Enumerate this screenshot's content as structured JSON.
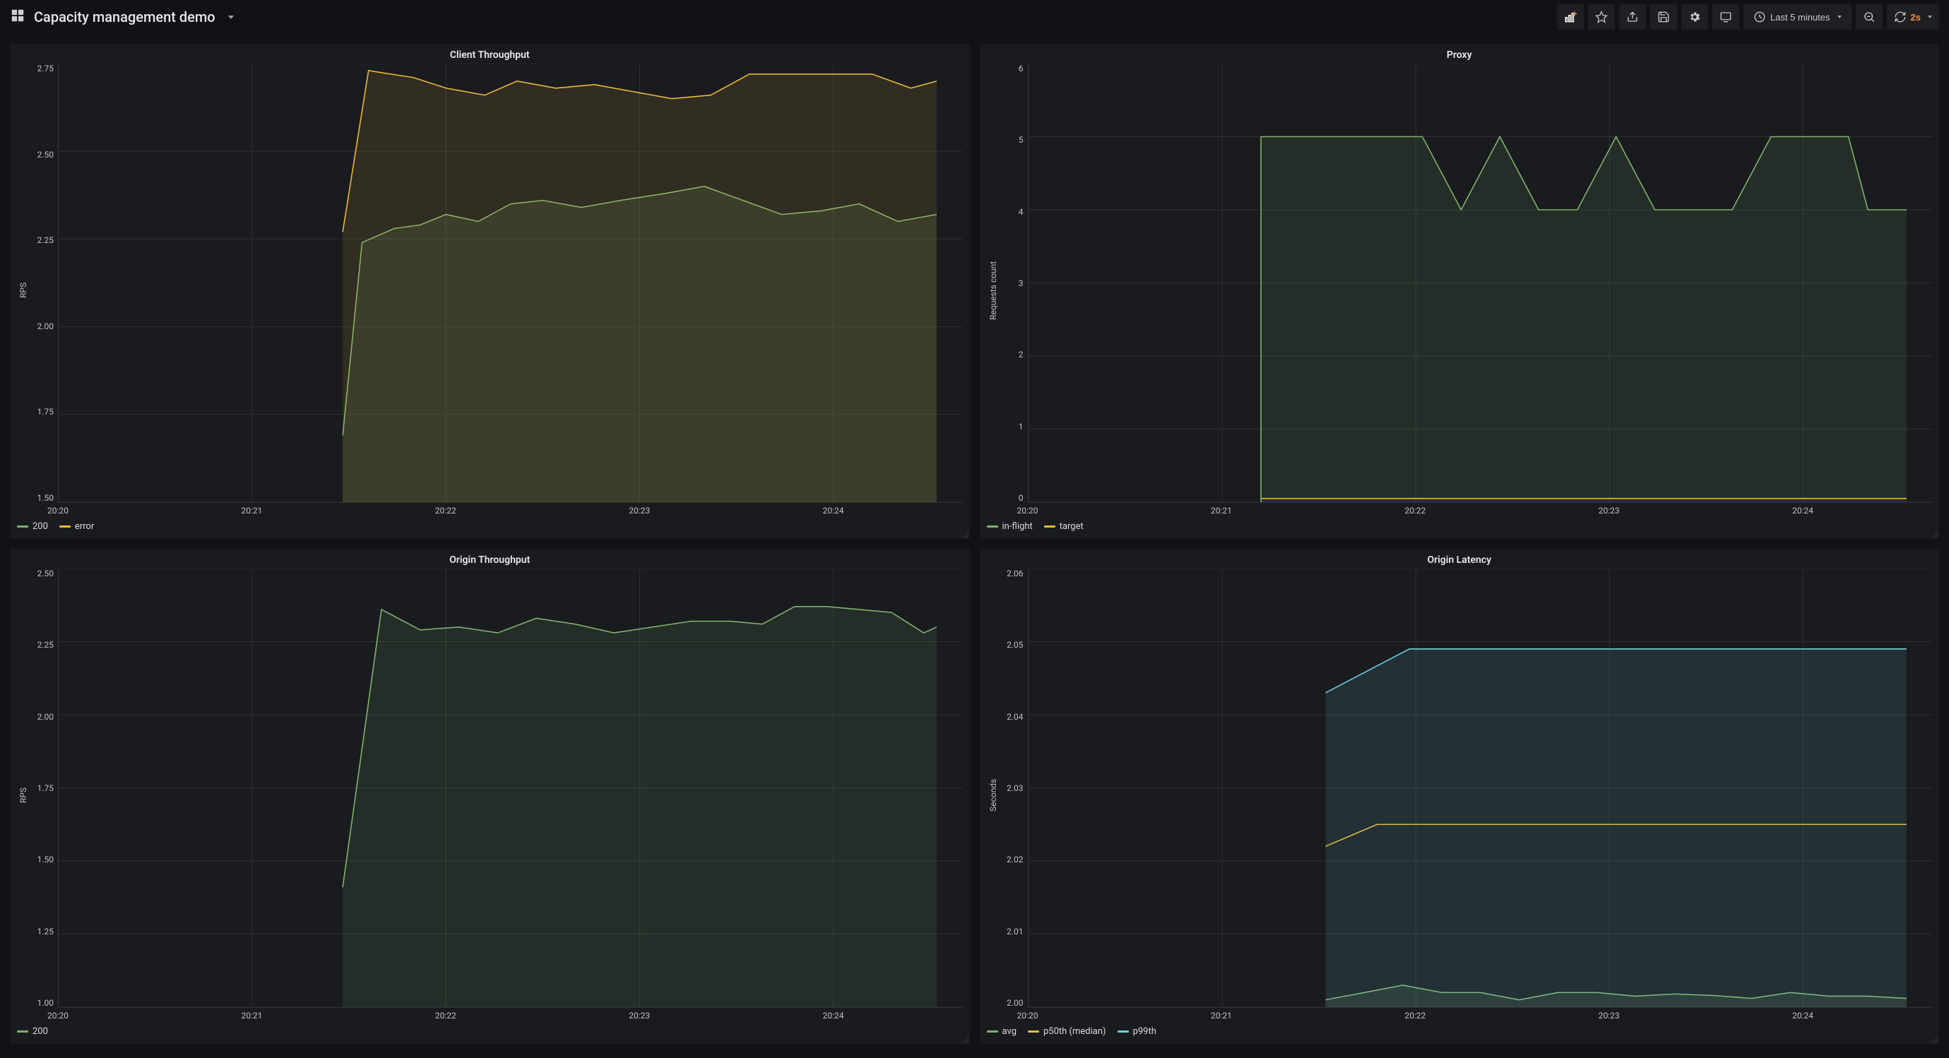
{
  "header": {
    "title": "Capacity management demo",
    "time_range_label": "Last 5 minutes",
    "refresh_interval": "2s"
  },
  "colors": {
    "background": "#111217",
    "panel_bg": "#1a1b1f",
    "grid": "#2f3034",
    "text": "#d8d9da",
    "accent_orange": "#ff8f33"
  },
  "x_axis": {
    "min": 0,
    "max": 280,
    "ticks": [
      {
        "label": "20:20",
        "v": 0
      },
      {
        "label": "20:21",
        "v": 60
      },
      {
        "label": "20:22",
        "v": 120
      },
      {
        "label": "20:23",
        "v": 180
      },
      {
        "label": "20:24",
        "v": 240
      }
    ]
  },
  "panels": [
    {
      "id": "client-throughput",
      "title": "Client Throughput",
      "y_label": "RPS",
      "y_min": 1.5,
      "y_max": 2.75,
      "y_ticks": [
        "2.75",
        "2.50",
        "2.25",
        "2.00",
        "1.75",
        "1.50"
      ],
      "series": [
        {
          "name": "200",
          "color": "#7eb26d",
          "fill": true,
          "fill_opacity": 0.12,
          "points": [
            [
              88,
              1.69
            ],
            [
              94,
              2.24
            ],
            [
              104,
              2.28
            ],
            [
              112,
              2.29
            ],
            [
              120,
              2.32
            ],
            [
              130,
              2.3
            ],
            [
              140,
              2.35
            ],
            [
              150,
              2.36
            ],
            [
              162,
              2.34
            ],
            [
              174,
              2.36
            ],
            [
              188,
              2.38
            ],
            [
              200,
              2.4
            ],
            [
              212,
              2.36
            ],
            [
              224,
              2.32
            ],
            [
              236,
              2.33
            ],
            [
              248,
              2.35
            ],
            [
              260,
              2.3
            ],
            [
              272,
              2.32
            ]
          ]
        },
        {
          "name": "error",
          "color": "#eab839",
          "fill": true,
          "fill_opacity": 0.12,
          "points": [
            [
              88,
              2.27
            ],
            [
              96,
              2.73
            ],
            [
              110,
              2.71
            ],
            [
              120,
              2.68
            ],
            [
              132,
              2.66
            ],
            [
              142,
              2.7
            ],
            [
              154,
              2.68
            ],
            [
              166,
              2.69
            ],
            [
              178,
              2.67
            ],
            [
              190,
              2.65
            ],
            [
              202,
              2.66
            ],
            [
              214,
              2.72
            ],
            [
              226,
              2.72
            ],
            [
              238,
              2.72
            ],
            [
              252,
              2.72
            ],
            [
              264,
              2.68
            ],
            [
              272,
              2.7
            ]
          ]
        }
      ]
    },
    {
      "id": "proxy",
      "title": "Proxy",
      "y_label": "Requests count",
      "y_min": 0,
      "y_max": 6,
      "y_ticks": [
        "6",
        "5",
        "4",
        "3",
        "2",
        "1",
        "0"
      ],
      "series": [
        {
          "name": "in-flight",
          "color": "#7eb26d",
          "fill": true,
          "fill_opacity": 0.12,
          "points": [
            [
              72,
              0
            ],
            [
              72,
              5
            ],
            [
              84,
              5
            ],
            [
              96,
              5
            ],
            [
              110,
              5
            ],
            [
              122,
              5
            ],
            [
              134,
              4
            ],
            [
              146,
              5
            ],
            [
              158,
              4
            ],
            [
              170,
              4
            ],
            [
              182,
              5
            ],
            [
              194,
              4
            ],
            [
              206,
              4
            ],
            [
              218,
              4
            ],
            [
              230,
              5
            ],
            [
              242,
              5
            ],
            [
              254,
              5
            ],
            [
              260,
              4
            ],
            [
              272,
              4
            ]
          ]
        },
        {
          "name": "target",
          "color": "#eab839",
          "fill": false,
          "points": [
            [
              72,
              0.05
            ],
            [
              272,
              0.05
            ]
          ]
        }
      ]
    },
    {
      "id": "origin-throughput",
      "title": "Origin Throughput",
      "y_label": "RPS",
      "y_min": 1.0,
      "y_max": 2.5,
      "y_ticks": [
        "2.50",
        "2.25",
        "2.00",
        "1.75",
        "1.50",
        "1.25",
        "1.00"
      ],
      "series": [
        {
          "name": "200",
          "color": "#7eb26d",
          "fill": true,
          "fill_opacity": 0.12,
          "points": [
            [
              88,
              1.41
            ],
            [
              100,
              2.36
            ],
            [
              112,
              2.29
            ],
            [
              124,
              2.3
            ],
            [
              136,
              2.28
            ],
            [
              148,
              2.33
            ],
            [
              160,
              2.31
            ],
            [
              172,
              2.28
            ],
            [
              184,
              2.3
            ],
            [
              196,
              2.32
            ],
            [
              208,
              2.32
            ],
            [
              218,
              2.31
            ],
            [
              228,
              2.37
            ],
            [
              238,
              2.37
            ],
            [
              248,
              2.36
            ],
            [
              258,
              2.35
            ],
            [
              268,
              2.28
            ],
            [
              272,
              2.3
            ]
          ]
        }
      ]
    },
    {
      "id": "origin-latency",
      "title": "Origin Latency",
      "y_label": "Seconds",
      "y_min": 2.0,
      "y_max": 2.06,
      "y_ticks": [
        "2.06",
        "2.05",
        "2.04",
        "2.03",
        "2.02",
        "2.01",
        "2.00"
      ],
      "series": [
        {
          "name": "avg",
          "color": "#7eb26d",
          "fill": true,
          "fill_opacity": 0.12,
          "points": [
            [
              92,
              2.001
            ],
            [
              104,
              2.002
            ],
            [
              116,
              2.003
            ],
            [
              128,
              2.002
            ],
            [
              140,
              2.002
            ],
            [
              152,
              2.001
            ],
            [
              164,
              2.002
            ],
            [
              176,
              2.002
            ],
            [
              188,
              2.0015
            ],
            [
              200,
              2.0018
            ],
            [
              212,
              2.0016
            ],
            [
              224,
              2.0012
            ],
            [
              236,
              2.002
            ],
            [
              248,
              2.0015
            ],
            [
              260,
              2.0015
            ],
            [
              272,
              2.0012
            ]
          ]
        },
        {
          "name": "p50th (median)",
          "color": "#eab839",
          "fill": false,
          "points": [
            [
              92,
              2.022
            ],
            [
              108,
              2.025
            ],
            [
              272,
              2.025
            ]
          ]
        },
        {
          "name": "p99th",
          "color": "#6ed0e0",
          "fill": true,
          "fill_opacity": 0.12,
          "points": [
            [
              92,
              2.043
            ],
            [
              118,
              2.049
            ],
            [
              272,
              2.049
            ]
          ]
        }
      ]
    }
  ]
}
